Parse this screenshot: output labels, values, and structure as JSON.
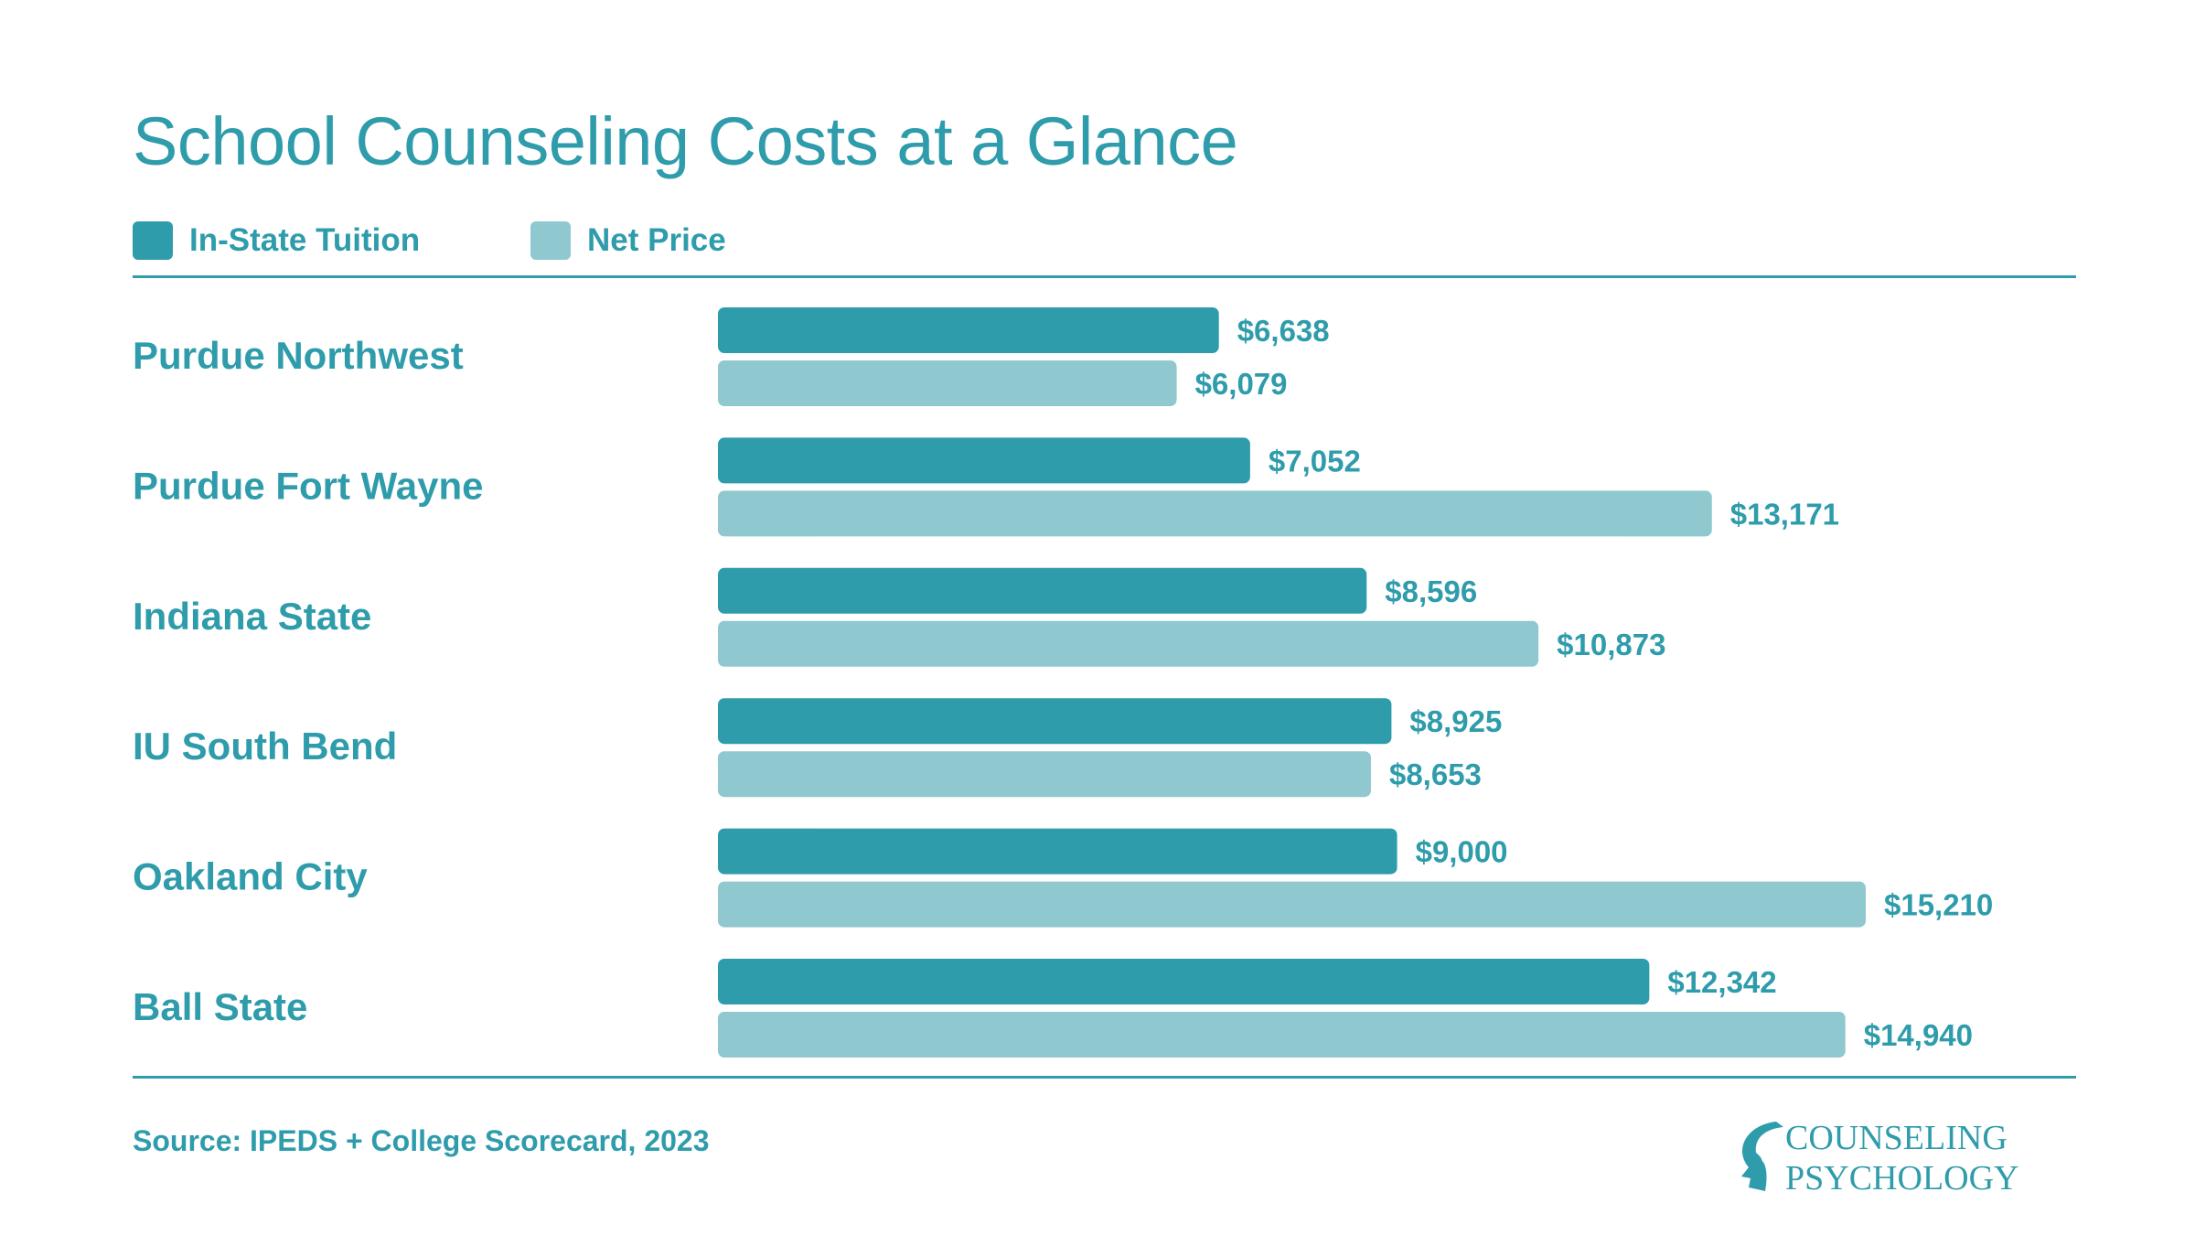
{
  "title": "School Counseling Costs at a Glance",
  "legend": [
    {
      "label": "In-State Tuition",
      "color": "#2f9cab"
    },
    {
      "label": "Net Price",
      "color": "#90c8d0"
    }
  ],
  "source": "Source: IPEDS + College Scorecard, 2023",
  "logo": {
    "line1": "COUNSELING",
    "line2": "PSYCHOLOGY"
  },
  "colors": {
    "accent": "#2f9cab",
    "light": "#90c8d0"
  },
  "chart_data": {
    "type": "bar",
    "orientation": "horizontal",
    "categories": [
      "Purdue Northwest",
      "Purdue Fort Wayne",
      "Indiana State",
      "IU South Bend",
      "Oakland City",
      "Ball State"
    ],
    "series": [
      {
        "name": "In-State Tuition",
        "values": [
          6638,
          7052,
          8596,
          8925,
          9000,
          12342
        ],
        "labels": [
          "$6,638",
          "$7,052",
          "$8,596",
          "$8,925",
          "$9,000",
          "$12,342"
        ],
        "color": "#2f9cab"
      },
      {
        "name": "Net Price",
        "values": [
          6079,
          13171,
          10873,
          8653,
          15210,
          14940
        ],
        "labels": [
          "$6,079",
          "$13,171",
          "$10,873",
          "$8,653",
          "$15,210",
          "$14,940"
        ],
        "color": "#90c8d0"
      }
    ],
    "xlim": [
      0,
      15210
    ],
    "grid": false,
    "legend_position": "top-left"
  }
}
